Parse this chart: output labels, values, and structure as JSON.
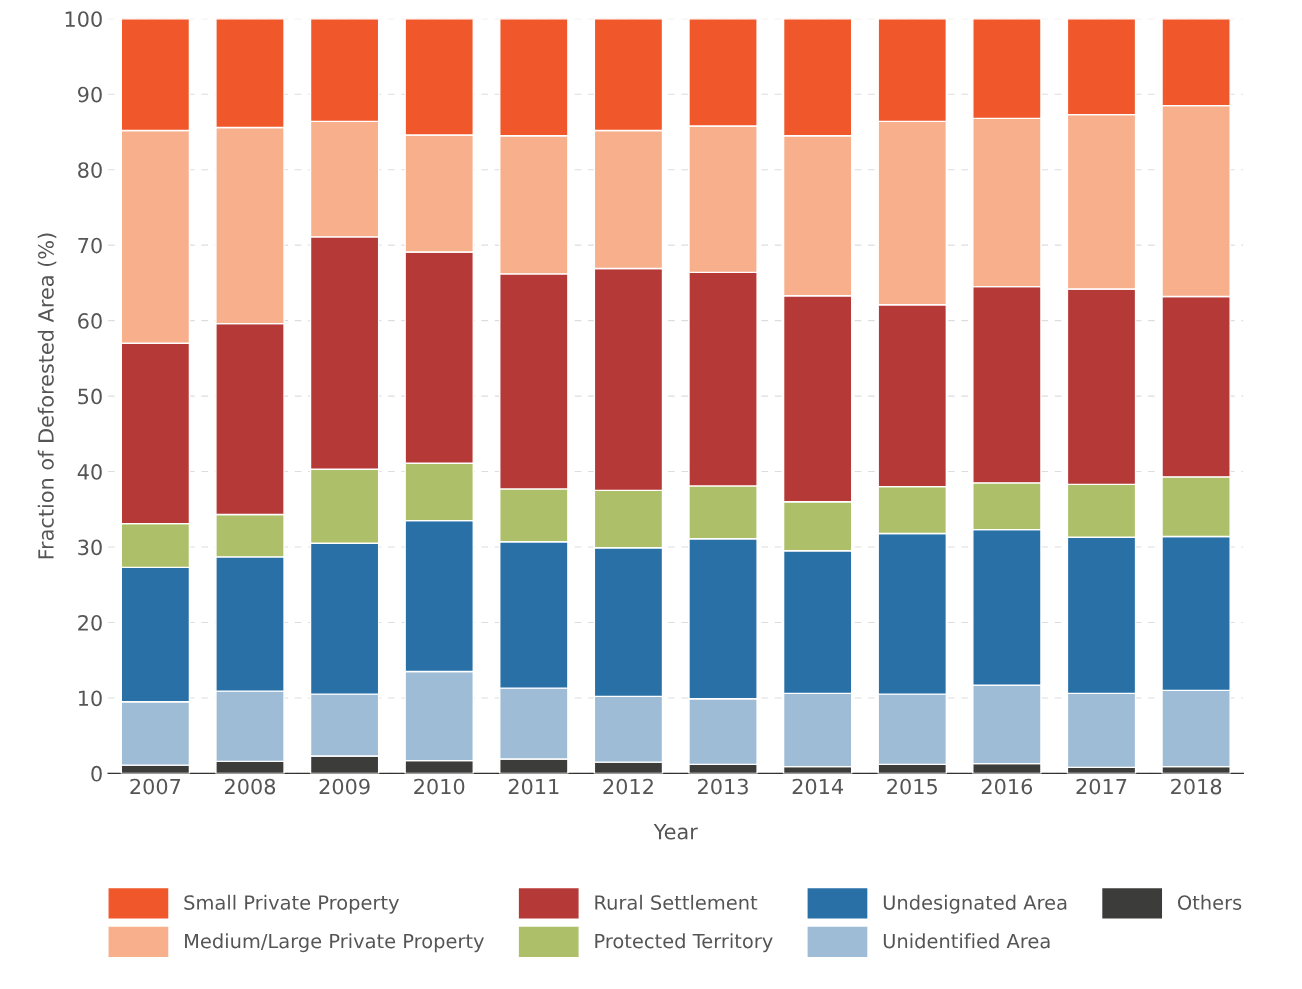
{
  "chart_data": {
    "type": "bar",
    "stacked": true,
    "xlabel": "Year",
    "ylabel": "Fraction of Deforested Area (%)",
    "categories": [
      "2007",
      "2008",
      "2009",
      "2010",
      "2011",
      "2012",
      "2013",
      "2014",
      "2015",
      "2016",
      "2017",
      "2018"
    ],
    "series": [
      {
        "name": "Others",
        "color": "#3c3c3a",
        "values": [
          1.1,
          1.6,
          2.3,
          1.7,
          1.9,
          1.5,
          1.2,
          0.9,
          1.2,
          1.3,
          0.8,
          0.9
        ]
      },
      {
        "name": "Unidentified Area",
        "color": "#9fbcd7",
        "values": [
          8.4,
          9.3,
          8.2,
          11.8,
          9.4,
          8.7,
          8.7,
          9.7,
          9.3,
          10.4,
          9.8,
          10.1
        ]
      },
      {
        "name": "Undesignated Area",
        "color": "#2870a6",
        "values": [
          17.8,
          17.8,
          20.0,
          20.0,
          19.4,
          19.7,
          21.2,
          18.9,
          21.3,
          20.6,
          20.7,
          20.4
        ]
      },
      {
        "name": "Protected Territory",
        "color": "#adc069",
        "values": [
          5.8,
          5.6,
          9.8,
          7.6,
          7.0,
          7.6,
          7.0,
          6.5,
          6.2,
          6.2,
          7.0,
          7.9
        ]
      },
      {
        "name": "Rural Settlement",
        "color": "#b53a37",
        "values": [
          23.9,
          25.3,
          30.8,
          28.0,
          28.5,
          29.4,
          28.3,
          27.3,
          24.1,
          26.0,
          25.9,
          23.9
        ]
      },
      {
        "name": "Medium/Large Private Property",
        "color": "#f8af8c",
        "values": [
          28.2,
          26.0,
          15.3,
          15.5,
          18.3,
          18.3,
          19.4,
          21.2,
          24.3,
          22.3,
          23.1,
          25.3
        ]
      },
      {
        "name": "Small Private Property",
        "color": "#f0582b",
        "values": [
          14.8,
          14.4,
          13.6,
          15.4,
          15.5,
          14.8,
          14.2,
          15.5,
          13.6,
          13.2,
          12.7,
          11.5
        ]
      }
    ],
    "ylim": [
      0,
      100
    ],
    "yticks": [
      0,
      10,
      20,
      30,
      40,
      50,
      60,
      70,
      80,
      90,
      100
    ],
    "grid": "y",
    "legend": "bottom"
  }
}
